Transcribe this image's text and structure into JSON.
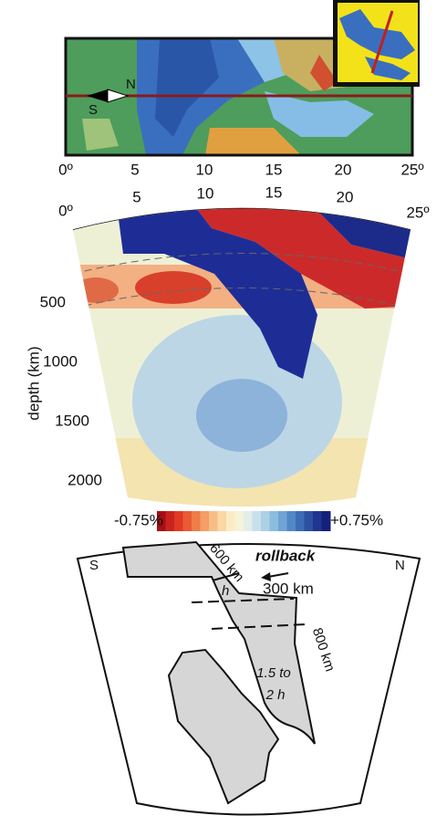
{
  "map": {
    "south_label": "S",
    "north_label": "N",
    "longitude_ticks": [
      "0º",
      "5",
      "10",
      "15",
      "20",
      "25º"
    ]
  },
  "section": {
    "longitude_ticks": [
      "0º",
      "5",
      "10",
      "15",
      "20",
      "25º"
    ],
    "depth_ticks": [
      "500",
      "1000",
      "1500",
      "2000"
    ],
    "depth_axis_label": "depth (km)"
  },
  "colorbar": {
    "min_label": "-0.75%",
    "max_label": "+0.75%"
  },
  "schematic": {
    "south_label": "S",
    "north_label": "N",
    "rollback_label": "rollback",
    "slab_length_label": "600 km",
    "rollback_distance_label": "300 km",
    "thickness_label": "h",
    "lower_length_label": "800 km",
    "thickening_label": [
      "1.5 to",
      "2 h"
    ]
  }
}
